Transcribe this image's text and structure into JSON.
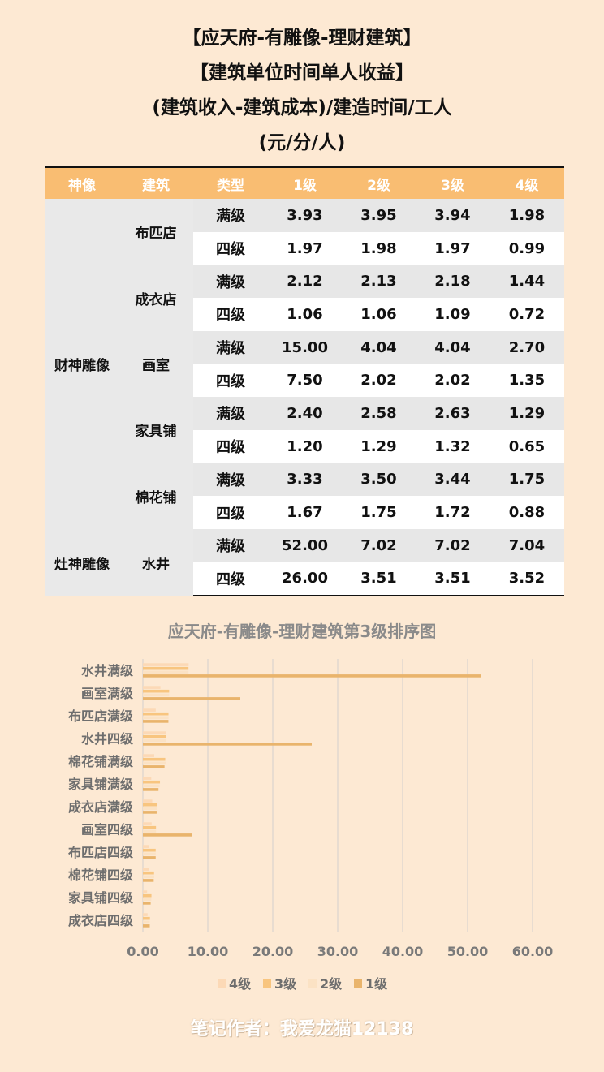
{
  "titles": [
    "【应天府-有雕像-理财建筑】",
    "【建筑单位时间单人收益】",
    "(建筑收入-建筑成本)/建造时间/工人",
    "(元/分/人)"
  ],
  "table": {
    "headers": [
      "神像",
      "建筑",
      "类型",
      "1级",
      "2级",
      "3级",
      "4级"
    ],
    "groups": [
      {
        "deity": "财神雕像",
        "buildings": [
          {
            "name": "布匹店",
            "rows": [
              {
                "type": "满级",
                "v": [
                  "3.93",
                  "3.95",
                  "3.94",
                  "1.98"
                ]
              },
              {
                "type": "四级",
                "v": [
                  "1.97",
                  "1.98",
                  "1.97",
                  "0.99"
                ]
              }
            ]
          },
          {
            "name": "成衣店",
            "rows": [
              {
                "type": "满级",
                "v": [
                  "2.12",
                  "2.13",
                  "2.18",
                  "1.44"
                ]
              },
              {
                "type": "四级",
                "v": [
                  "1.06",
                  "1.06",
                  "1.09",
                  "0.72"
                ]
              }
            ]
          },
          {
            "name": "画室",
            "rows": [
              {
                "type": "满级",
                "v": [
                  "15.00",
                  "4.04",
                  "4.04",
                  "2.70"
                ]
              },
              {
                "type": "四级",
                "v": [
                  "7.50",
                  "2.02",
                  "2.02",
                  "1.35"
                ]
              }
            ]
          },
          {
            "name": "家具铺",
            "rows": [
              {
                "type": "满级",
                "v": [
                  "2.40",
                  "2.58",
                  "2.63",
                  "1.29"
                ]
              },
              {
                "type": "四级",
                "v": [
                  "1.20",
                  "1.29",
                  "1.32",
                  "0.65"
                ]
              }
            ]
          },
          {
            "name": "棉花铺",
            "rows": [
              {
                "type": "满级",
                "v": [
                  "3.33",
                  "3.50",
                  "3.44",
                  "1.75"
                ]
              },
              {
                "type": "四级",
                "v": [
                  "1.67",
                  "1.75",
                  "1.72",
                  "0.88"
                ]
              }
            ]
          }
        ]
      },
      {
        "deity": "灶神雕像",
        "buildings": [
          {
            "name": "水井",
            "rows": [
              {
                "type": "满级",
                "v": [
                  "52.00",
                  "7.02",
                  "7.02",
                  "7.04"
                ]
              },
              {
                "type": "四级",
                "v": [
                  "26.00",
                  "3.51",
                  "3.51",
                  "3.52"
                ]
              }
            ]
          }
        ]
      }
    ]
  },
  "chart_title": "应天府-有雕像-理财建筑第3级排序图",
  "chart_data": {
    "type": "bar",
    "orientation": "horizontal",
    "title": "应天府-有雕像-理财建筑第3级排序图",
    "categories": [
      "水井满级",
      "画室满级",
      "布匹店满级",
      "水井四级",
      "棉花铺满级",
      "家具铺满级",
      "成衣店满级",
      "画室四级",
      "布匹店四级",
      "棉花铺四级",
      "家具铺四级",
      "成衣店四级"
    ],
    "series": [
      {
        "name": "4级",
        "color": "#fcd9b6",
        "values": [
          7.04,
          2.7,
          1.98,
          3.52,
          1.75,
          1.29,
          1.44,
          1.35,
          0.99,
          0.88,
          0.65,
          0.72
        ]
      },
      {
        "name": "3级",
        "color": "#f8c57f",
        "values": [
          7.02,
          4.04,
          3.94,
          3.51,
          3.44,
          2.63,
          2.18,
          2.02,
          1.97,
          1.72,
          1.32,
          1.09
        ]
      },
      {
        "name": "2级",
        "color": "#fbe2c4",
        "values": [
          7.02,
          4.04,
          3.95,
          3.51,
          3.5,
          2.58,
          2.13,
          2.02,
          1.98,
          1.75,
          1.29,
          1.06
        ]
      },
      {
        "name": "1级",
        "color": "#e9b46c",
        "values": [
          52.0,
          15.0,
          3.93,
          26.0,
          3.33,
          2.4,
          2.12,
          7.5,
          1.97,
          1.67,
          1.2,
          1.06
        ]
      }
    ],
    "xlim": [
      0,
      60
    ],
    "ticks": [
      "0.00",
      "10.00",
      "20.00",
      "30.00",
      "40.00",
      "50.00",
      "60.00"
    ],
    "grid": true,
    "legend": "bottom"
  },
  "footer": "笔记作者：我爱龙猫12138"
}
